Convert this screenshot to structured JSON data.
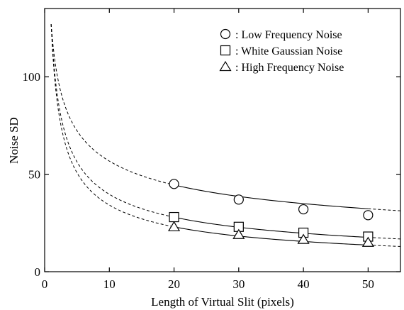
{
  "chart_data": {
    "type": "line",
    "xlabel": "Length of Virtual Slit  (pixels)",
    "ylabel": "Noise SD",
    "xlim": [
      0,
      55
    ],
    "ylim": [
      0,
      135
    ],
    "xticks": [
      0,
      10,
      20,
      30,
      40,
      50
    ],
    "yticks": [
      0,
      50,
      100
    ],
    "legend_position": "top-right",
    "grid": false,
    "series": [
      {
        "name": ": Low Frequency Noise",
        "marker": "circle",
        "x": [
          20,
          30,
          40,
          50
        ],
        "y": [
          45,
          37,
          32,
          29
        ],
        "fit": {
          "a": 127,
          "b": 0.35
        }
      },
      {
        "name": ": White Gaussian Noise",
        "marker": "square",
        "x": [
          20,
          30,
          40,
          50
        ],
        "y": [
          28,
          23,
          20,
          18
        ],
        "fit": {
          "a": 127,
          "b": 0.505
        }
      },
      {
        "name": ": High  Frequency Noise",
        "marker": "triangle",
        "x": [
          20,
          30,
          40,
          50
        ],
        "y": [
          23,
          19,
          16.5,
          15
        ],
        "fit": {
          "a": 127,
          "b": 0.57
        }
      }
    ]
  }
}
